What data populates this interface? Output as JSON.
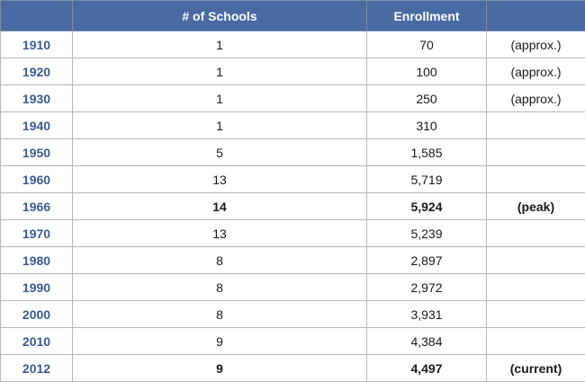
{
  "header": {
    "year": "",
    "schools": "# of Schools",
    "enrollment": "Enrollment",
    "note": ""
  },
  "rows": [
    {
      "year": "1910",
      "schools": "1",
      "enrollment": "70",
      "note": "(approx.)",
      "bold": false
    },
    {
      "year": "1920",
      "schools": "1",
      "enrollment": "100",
      "note": "(approx.)",
      "bold": false
    },
    {
      "year": "1930",
      "schools": "1",
      "enrollment": "250",
      "note": "(approx.)",
      "bold": false
    },
    {
      "year": "1940",
      "schools": "1",
      "enrollment": "310",
      "note": "",
      "bold": false
    },
    {
      "year": "1950",
      "schools": "5",
      "enrollment": "1,585",
      "note": "",
      "bold": false
    },
    {
      "year": "1960",
      "schools": "13",
      "enrollment": "5,719",
      "note": "",
      "bold": false
    },
    {
      "year": "1966",
      "schools": "14",
      "enrollment": "5,924",
      "note": "(peak)",
      "bold": true
    },
    {
      "year": "1970",
      "schools": "13",
      "enrollment": "5,239",
      "note": "",
      "bold": false
    },
    {
      "year": "1980",
      "schools": "8",
      "enrollment": "2,897",
      "note": "",
      "bold": false
    },
    {
      "year": "1990",
      "schools": "8",
      "enrollment": "2,972",
      "note": "",
      "bold": false
    },
    {
      "year": "2000",
      "schools": "8",
      "enrollment": "3,931",
      "note": "",
      "bold": false
    },
    {
      "year": "2010",
      "schools": "9",
      "enrollment": "4,384",
      "note": "",
      "bold": false
    },
    {
      "year": "2012",
      "schools": "9",
      "enrollment": "4,497",
      "note": "(current)",
      "bold": true
    }
  ],
  "colors": {
    "header_bg": "#4a6aa3",
    "year_text": "#3a5b91",
    "grid": "#b8b8b8"
  }
}
